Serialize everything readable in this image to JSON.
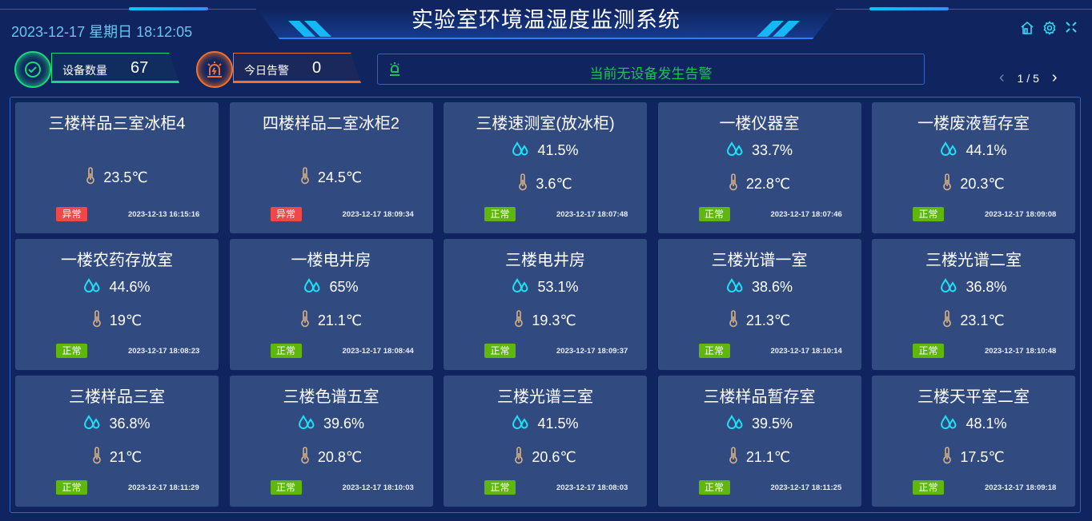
{
  "header": {
    "title": "实验室环境温湿度监测系统",
    "datetime": "2023-12-17 星期日 18:12:05"
  },
  "toolbar": {
    "icons": [
      "home-icon",
      "gear-icon",
      "fullscreen-icon"
    ]
  },
  "stats": [
    {
      "label": "设备数量",
      "value": "67",
      "color": "#1ed67c",
      "icon": "check-cycle-icon"
    },
    {
      "label": "今日告警",
      "value": "0",
      "color": "#f2702a",
      "icon": "alarm-light-icon"
    }
  ],
  "alert": {
    "message": "当前无设备发生告警",
    "color": "#1fbf5a"
  },
  "pager": {
    "prev": "‹",
    "next": "›",
    "text": "1 / 5"
  },
  "colors": {
    "bg": "#10245f",
    "card": "#314a80",
    "normal": "#5fb70e",
    "abnormal": "#f04848",
    "humidity": "#1ee0f5",
    "temp": "#d8b083"
  },
  "devices": [
    {
      "name": "三楼样品三室冰柜4",
      "humidity": null,
      "temp": "23.5℃",
      "status": "异常",
      "time": "2023-12-13 16:15:16"
    },
    {
      "name": "四楼样品二室冰柜2",
      "humidity": null,
      "temp": "24.5℃",
      "status": "异常",
      "time": "2023-12-17 18:09:34"
    },
    {
      "name": "三楼速测室(放冰柜)",
      "humidity": "41.5%",
      "temp": "3.6℃",
      "status": "正常",
      "time": "2023-12-17 18:07:48"
    },
    {
      "name": "一楼仪器室",
      "humidity": "33.7%",
      "temp": "22.8℃",
      "status": "正常",
      "time": "2023-12-17 18:07:46"
    },
    {
      "name": "一楼废液暂存室",
      "humidity": "44.1%",
      "temp": "20.3℃",
      "status": "正常",
      "time": "2023-12-17 18:09:08"
    },
    {
      "name": "一楼农药存放室",
      "humidity": "44.6%",
      "temp": "19℃",
      "status": "正常",
      "time": "2023-12-17 18:08:23"
    },
    {
      "name": "一楼电井房",
      "humidity": "65%",
      "temp": "21.1℃",
      "status": "正常",
      "time": "2023-12-17 18:08:44"
    },
    {
      "name": "三楼电井房",
      "humidity": "53.1%",
      "temp": "19.3℃",
      "status": "正常",
      "time": "2023-12-17 18:09:37"
    },
    {
      "name": "三楼光谱一室",
      "humidity": "38.6%",
      "temp": "21.3℃",
      "status": "正常",
      "time": "2023-12-17 18:10:14"
    },
    {
      "name": "三楼光谱二室",
      "humidity": "36.8%",
      "temp": "23.1℃",
      "status": "正常",
      "time": "2023-12-17 18:10:48"
    },
    {
      "name": "三楼样品三室",
      "humidity": "36.8%",
      "temp": "21℃",
      "status": "正常",
      "time": "2023-12-17 18:11:29"
    },
    {
      "name": "三楼色谱五室",
      "humidity": "39.6%",
      "temp": "20.8℃",
      "status": "正常",
      "time": "2023-12-17 18:10:03"
    },
    {
      "name": "三楼光谱三室",
      "humidity": "41.5%",
      "temp": "20.6℃",
      "status": "正常",
      "time": "2023-12-17 18:08:03"
    },
    {
      "name": "三楼样品暂存室",
      "humidity": "39.5%",
      "temp": "21.1℃",
      "status": "正常",
      "time": "2023-12-17 18:11:25"
    },
    {
      "name": "三楼天平室二室",
      "humidity": "48.1%",
      "temp": "17.5℃",
      "status": "正常",
      "time": "2023-12-17 18:09:18"
    }
  ]
}
